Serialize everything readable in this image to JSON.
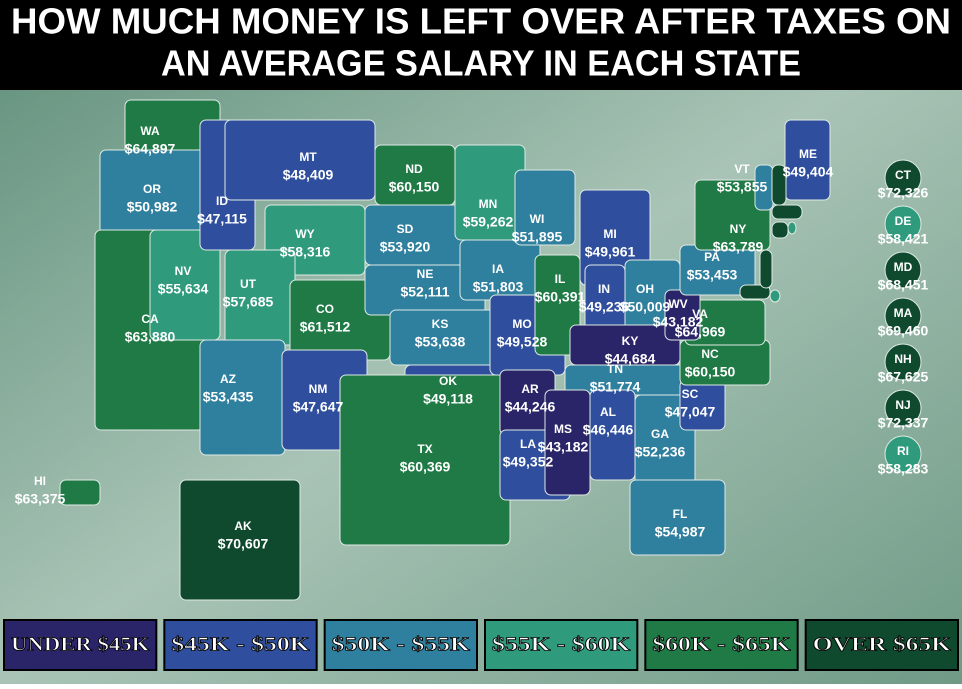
{
  "title": [
    "HOW MUCH MONEY IS LEFT OVER AFTER TAXES ON",
    "AN AVERAGE SALARY IN EACH STATE"
  ],
  "legend": [
    {
      "label": "UNDER $45K",
      "color": "#2a2468"
    },
    {
      "label": "$45K - $50K",
      "color": "#2f4f9e"
    },
    {
      "label": "$50K - $55K",
      "color": "#2f7f9e"
    },
    {
      "label": "$55K - $60K",
      "color": "#2f9a7c"
    },
    {
      "label": "$60K - $65K",
      "color": "#1f7a46"
    },
    {
      "label": "OVER $65K",
      "color": "#0f4a2e"
    }
  ],
  "states": [
    {
      "abbr": "WA",
      "amount": "$64,897",
      "color": "#1f7a46"
    },
    {
      "abbr": "OR",
      "amount": "$50,982",
      "color": "#2f7f9e"
    },
    {
      "abbr": "CA",
      "amount": "$63,880",
      "color": "#1f7a46"
    },
    {
      "abbr": "NV",
      "amount": "$55,634",
      "color": "#2f9a7c"
    },
    {
      "abbr": "ID",
      "amount": "$47,115",
      "color": "#2f4f9e"
    },
    {
      "abbr": "MT",
      "amount": "$48,409",
      "color": "#2f4f9e"
    },
    {
      "abbr": "WY",
      "amount": "$58,316",
      "color": "#2f9a7c"
    },
    {
      "abbr": "UT",
      "amount": "$57,685",
      "color": "#2f9a7c"
    },
    {
      "abbr": "AZ",
      "amount": "$53,435",
      "color": "#2f7f9e"
    },
    {
      "abbr": "CO",
      "amount": "$61,512",
      "color": "#1f7a46"
    },
    {
      "abbr": "NM",
      "amount": "$47,647",
      "color": "#2f4f9e"
    },
    {
      "abbr": "ND",
      "amount": "$60,150",
      "color": "#1f7a46"
    },
    {
      "abbr": "SD",
      "amount": "$53,920",
      "color": "#2f7f9e"
    },
    {
      "abbr": "NE",
      "amount": "$52,111",
      "color": "#2f7f9e"
    },
    {
      "abbr": "KS",
      "amount": "$53,638",
      "color": "#2f7f9e"
    },
    {
      "abbr": "OK",
      "amount": "$49,118",
      "color": "#2f4f9e"
    },
    {
      "abbr": "TX",
      "amount": "$60,369",
      "color": "#1f7a46"
    },
    {
      "abbr": "MN",
      "amount": "$59,262",
      "color": "#2f9a7c"
    },
    {
      "abbr": "IA",
      "amount": "$51,803",
      "color": "#2f7f9e"
    },
    {
      "abbr": "MO",
      "amount": "$49,528",
      "color": "#2f4f9e"
    },
    {
      "abbr": "AR",
      "amount": "$44,246",
      "color": "#2a2468"
    },
    {
      "abbr": "LA",
      "amount": "$49,352",
      "color": "#2f4f9e"
    },
    {
      "abbr": "WI",
      "amount": "$51,895",
      "color": "#2f7f9e"
    },
    {
      "abbr": "IL",
      "amount": "$60,391",
      "color": "#1f7a46"
    },
    {
      "abbr": "MI",
      "amount": "$49,961",
      "color": "#2f4f9e"
    },
    {
      "abbr": "IN",
      "amount": "$49,236",
      "color": "#2f4f9e"
    },
    {
      "abbr": "OH",
      "amount": "$50,009",
      "color": "#2f7f9e"
    },
    {
      "abbr": "KY",
      "amount": "$44,684",
      "color": "#2a2468"
    },
    {
      "abbr": "TN",
      "amount": "$51,774",
      "color": "#2f7f9e"
    },
    {
      "abbr": "MS",
      "amount": "$43,182",
      "color": "#2a2468"
    },
    {
      "abbr": "AL",
      "amount": "$46,446",
      "color": "#2f4f9e"
    },
    {
      "abbr": "GA",
      "amount": "$52,236",
      "color": "#2f7f9e"
    },
    {
      "abbr": "FL",
      "amount": "$54,987",
      "color": "#2f7f9e"
    },
    {
      "abbr": "SC",
      "amount": "$47,047",
      "color": "#2f4f9e"
    },
    {
      "abbr": "NC",
      "amount": "$60,150",
      "color": "#1f7a46"
    },
    {
      "abbr": "VA",
      "amount": "$64,969",
      "color": "#1f7a46"
    },
    {
      "abbr": "WV",
      "amount": "$43,182",
      "color": "#2a2468"
    },
    {
      "abbr": "PA",
      "amount": "$53,453",
      "color": "#2f7f9e"
    },
    {
      "abbr": "NY",
      "amount": "$63,789",
      "color": "#1f7a46"
    },
    {
      "abbr": "VT",
      "amount": "$53,855",
      "color": "#2f7f9e"
    },
    {
      "abbr": "ME",
      "amount": "$49,404",
      "color": "#2f4f9e"
    },
    {
      "abbr": "HI",
      "amount": "$63,375",
      "color": "#1f7a46"
    },
    {
      "abbr": "AK",
      "amount": "$70,607",
      "color": "#0f4a2e"
    },
    {
      "abbr": "CT",
      "amount": "$72,326",
      "color": "#0f4a2e"
    },
    {
      "abbr": "DE",
      "amount": "$58,421",
      "color": "#2f9a7c"
    },
    {
      "abbr": "MD",
      "amount": "$68,451",
      "color": "#0f4a2e"
    },
    {
      "abbr": "MA",
      "amount": "$69,460",
      "color": "#0f4a2e"
    },
    {
      "abbr": "NH",
      "amount": "$67,625",
      "color": "#0f4a2e"
    },
    {
      "abbr": "NJ",
      "amount": "$72,337",
      "color": "#0f4a2e"
    },
    {
      "abbr": "RI",
      "amount": "$58,283",
      "color": "#2f9a7c"
    }
  ]
}
